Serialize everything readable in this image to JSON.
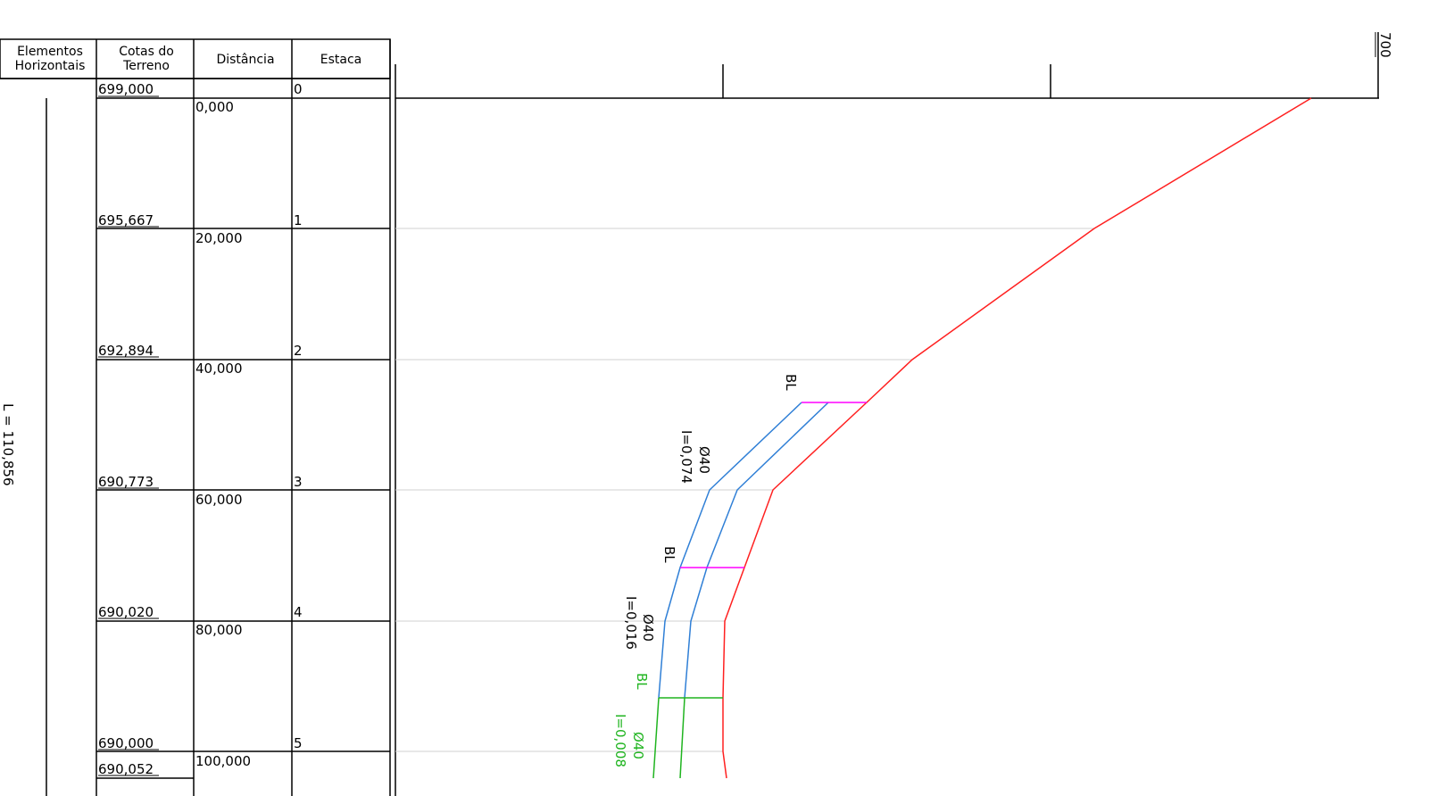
{
  "table": {
    "headers": {
      "elementos": [
        "Elementos",
        "Horizontais"
      ],
      "cotas": [
        "Cotas do",
        "Terreno"
      ],
      "distancia": "Distância",
      "estaca": "Estaca"
    },
    "horizontal_length_label": "L = 110,856",
    "rows": [
      {
        "cota": "699,000",
        "distancia": "0,000",
        "estaca": "0"
      },
      {
        "cota": "695,667",
        "distancia": "20,000",
        "estaca": "1"
      },
      {
        "cota": "692,894",
        "distancia": "40,000",
        "estaca": "2"
      },
      {
        "cota": "690,773",
        "distancia": "60,000",
        "estaca": "3"
      },
      {
        "cota": "690,020",
        "distancia": "80,000",
        "estaca": "4"
      },
      {
        "cota": "690,000",
        "distancia": "100,000",
        "estaca": "5"
      }
    ],
    "extra_cota": "690,052"
  },
  "profile": {
    "scale_label": "700",
    "terrain_color": "#ff2020",
    "pipe_color": "#2f7fd6",
    "pipe_green_color": "#1fb41f",
    "manhole_color": "#ff00ff",
    "annotations": [
      {
        "label": "BL",
        "color": "#000000"
      },
      {
        "label": "Ø40",
        "sub": "I=0,074",
        "color": "#000000"
      },
      {
        "label": "BL",
        "color": "#000000"
      },
      {
        "label": "Ø40",
        "sub": "I=0,016",
        "color": "#000000"
      },
      {
        "label": "BL",
        "color": "#1fb41f"
      },
      {
        "label": "Ø40",
        "sub": "I=0,008",
        "color": "#1fb41f"
      }
    ]
  }
}
